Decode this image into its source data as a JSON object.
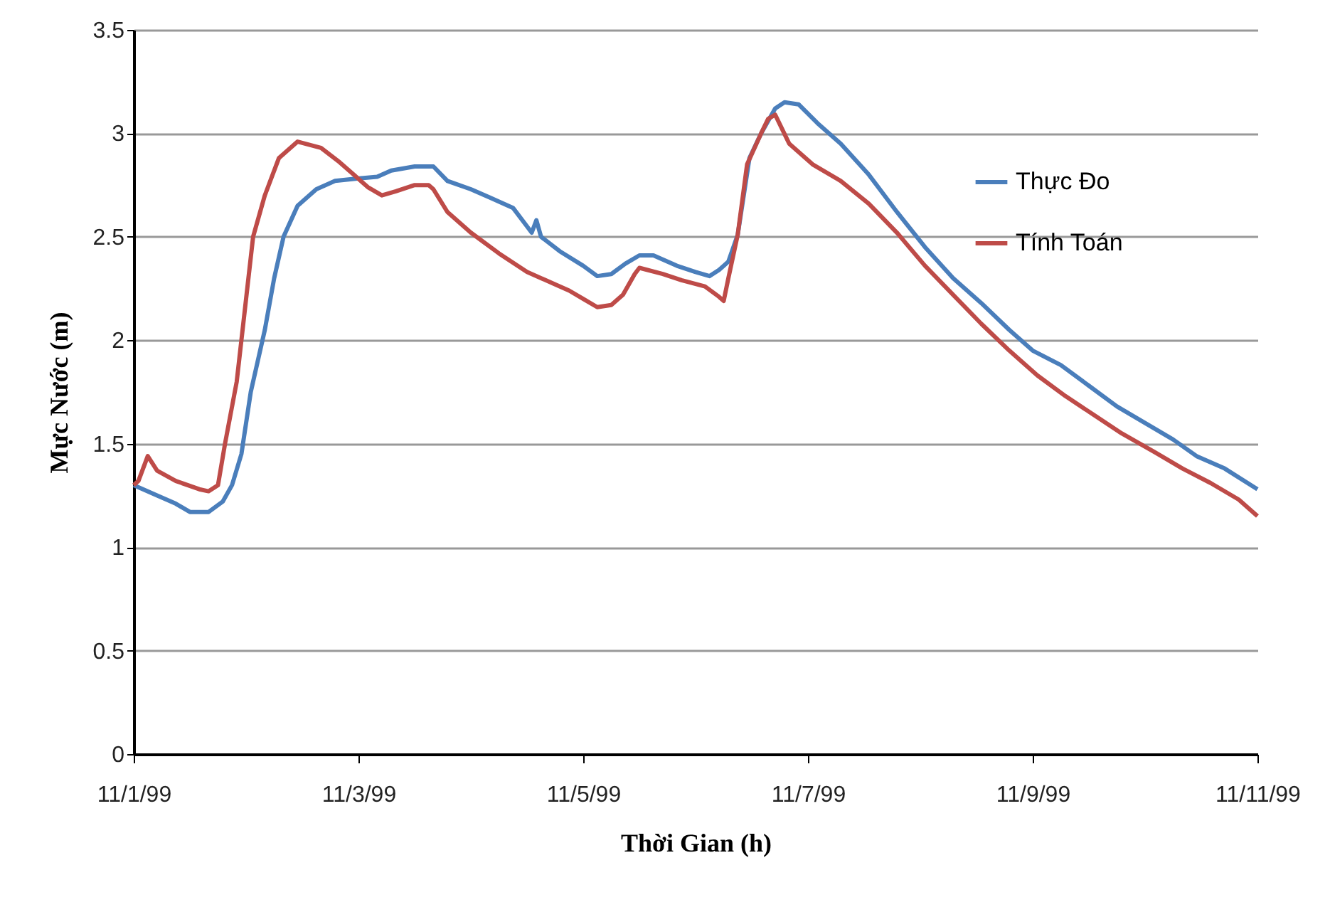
{
  "chart_data": {
    "type": "line",
    "xlabel": "Thời Gian (h)",
    "ylabel": "Mực Nước (m)",
    "xlim": [
      "1999-11-01",
      "1999-11-11"
    ],
    "xticks": [
      {
        "value": "1999-11-01",
        "label": "11/1/99"
      },
      {
        "value": "1999-11-03",
        "label": "11/3/99"
      },
      {
        "value": "1999-11-05",
        "label": "11/5/99"
      },
      {
        "value": "1999-11-07",
        "label": "11/7/99"
      },
      {
        "value": "1999-11-09",
        "label": "11/9/99"
      },
      {
        "value": "1999-11-11",
        "label": "11/11/99"
      }
    ],
    "ylim": [
      0,
      3.5
    ],
    "yticks": [
      0,
      0.5,
      1,
      1.5,
      2,
      2.5,
      3,
      3.5
    ],
    "grid": "y",
    "legend": "top right",
    "marker": "none",
    "line_style": "solid",
    "series": [
      {
        "name": "Thực Đo",
        "color": "#4a7ebb",
        "x": [
          "1999-11-01T00:00",
          "1999-11-01T05:00",
          "1999-11-01T09:00",
          "1999-11-01T12:00",
          "1999-11-01T16:00",
          "1999-11-01T19:00",
          "1999-11-01T21:00",
          "1999-11-01T23:00",
          "1999-11-02T01:00",
          "1999-11-02T04:00",
          "1999-11-02T06:00",
          "1999-11-02T08:00",
          "1999-11-02T11:00",
          "1999-11-02T15:00",
          "1999-11-02T19:00",
          "1999-11-02T23:00",
          "1999-11-03T04:00",
          "1999-11-03T07:00",
          "1999-11-03T12:00",
          "1999-11-03T16:00",
          "1999-11-03T19:00",
          "1999-11-04T00:00",
          "1999-11-04T04:00",
          "1999-11-04T09:00",
          "1999-11-04T12:00",
          "1999-11-04T13:00",
          "1999-11-04T14:00",
          "1999-11-04T15:00",
          "1999-11-04T19:00",
          "1999-11-05T00:00",
          "1999-11-05T03:00",
          "1999-11-05T06:00",
          "1999-11-05T09:00",
          "1999-11-05T12:00",
          "1999-11-05T15:00",
          "1999-11-05T20:00",
          "1999-11-06T00:00",
          "1999-11-06T03:00",
          "1999-11-06T05:00",
          "1999-11-06T07:00",
          "1999-11-06T09:00",
          "1999-11-06T11:30",
          "1999-11-06T14:00",
          "1999-11-06T17:00",
          "1999-11-06T19:00",
          "1999-11-06T22:00",
          "1999-11-07T02:00",
          "1999-11-07T07:00",
          "1999-11-07T13:00",
          "1999-11-07T19:00",
          "1999-11-08T01:00",
          "1999-11-08T07:00",
          "1999-11-08T13:00",
          "1999-11-08T19:00",
          "1999-11-09T00:00",
          "1999-11-09T06:00",
          "1999-11-09T12:00",
          "1999-11-09T18:00",
          "1999-11-10T00:00",
          "1999-11-10T06:00",
          "1999-11-10T11:00",
          "1999-11-10T17:00",
          "1999-11-11T00:00"
        ],
        "values": [
          1.3,
          1.25,
          1.21,
          1.17,
          1.17,
          1.22,
          1.3,
          1.45,
          1.75,
          2.05,
          2.3,
          2.5,
          2.65,
          2.73,
          2.77,
          2.78,
          2.79,
          2.82,
          2.84,
          2.84,
          2.77,
          2.73,
          2.69,
          2.64,
          2.55,
          2.52,
          2.58,
          2.5,
          2.43,
          2.36,
          2.31,
          2.32,
          2.37,
          2.41,
          2.41,
          2.36,
          2.33,
          2.31,
          2.34,
          2.38,
          2.51,
          2.88,
          3.0,
          3.12,
          3.15,
          3.14,
          3.05,
          2.95,
          2.8,
          2.62,
          2.45,
          2.3,
          2.18,
          2.05,
          1.95,
          1.88,
          1.78,
          1.68,
          1.6,
          1.52,
          1.44,
          1.38,
          1.28
        ]
      },
      {
        "name": "Tính Toán",
        "color": "#be4b48",
        "x": [
          "1999-11-01T00:00",
          "1999-11-01T01:00",
          "1999-11-01T03:00",
          "1999-11-01T05:00",
          "1999-11-01T09:00",
          "1999-11-01T14:00",
          "1999-11-01T16:00",
          "1999-11-01T18:00",
          "1999-11-01T19:30",
          "1999-11-01T22:00",
          "1999-11-02T00:00",
          "1999-11-02T01:30",
          "1999-11-02T04:00",
          "1999-11-02T07:00",
          "1999-11-02T11:00",
          "1999-11-02T16:00",
          "1999-11-02T20:00",
          "1999-11-02T23:00",
          "1999-11-03T02:00",
          "1999-11-03T05:00",
          "1999-11-03T08:00",
          "1999-11-03T12:00",
          "1999-11-03T15:00",
          "1999-11-03T16:00",
          "1999-11-03T19:00",
          "1999-11-04T00:00",
          "1999-11-04T06:00",
          "1999-11-04T12:00",
          "1999-11-04T18:00",
          "1999-11-04T21:00",
          "1999-11-05T00:00",
          "1999-11-05T03:00",
          "1999-11-05T06:00",
          "1999-11-05T08:30",
          "1999-11-05T11:00",
          "1999-11-05T12:00",
          "1999-11-05T17:00",
          "1999-11-05T21:00",
          "1999-11-06T02:00",
          "1999-11-06T05:00",
          "1999-11-06T06:00",
          "1999-11-06T07:00",
          "1999-11-06T09:00",
          "1999-11-06T11:00",
          "1999-11-06T14:00",
          "1999-11-06T15:30",
          "1999-11-06T17:00",
          "1999-11-06T18:30",
          "1999-11-06T20:00",
          "1999-11-07T01:00",
          "1999-11-07T07:00",
          "1999-11-07T13:00",
          "1999-11-07T19:00",
          "1999-11-08T01:00",
          "1999-11-08T07:00",
          "1999-11-08T13:00",
          "1999-11-08T19:00",
          "1999-11-09T01:00",
          "1999-11-09T07:00",
          "1999-11-09T13:00",
          "1999-11-09T19:00",
          "1999-11-10T02:00",
          "1999-11-10T08:00",
          "1999-11-10T14:00",
          "1999-11-10T20:00",
          "1999-11-11T00:00"
        ],
        "values": [
          1.3,
          1.32,
          1.44,
          1.37,
          1.32,
          1.28,
          1.27,
          1.3,
          1.5,
          1.8,
          2.2,
          2.5,
          2.7,
          2.88,
          2.96,
          2.93,
          2.86,
          2.8,
          2.74,
          2.7,
          2.72,
          2.75,
          2.75,
          2.73,
          2.62,
          2.52,
          2.42,
          2.33,
          2.27,
          2.24,
          2.2,
          2.16,
          2.17,
          2.22,
          2.32,
          2.35,
          2.32,
          2.29,
          2.26,
          2.21,
          2.19,
          2.3,
          2.51,
          2.85,
          3.0,
          3.07,
          3.09,
          3.02,
          2.95,
          2.85,
          2.77,
          2.66,
          2.52,
          2.36,
          2.22,
          2.08,
          1.95,
          1.83,
          1.73,
          1.64,
          1.55,
          1.46,
          1.38,
          1.31,
          1.23,
          1.15
        ]
      }
    ]
  }
}
